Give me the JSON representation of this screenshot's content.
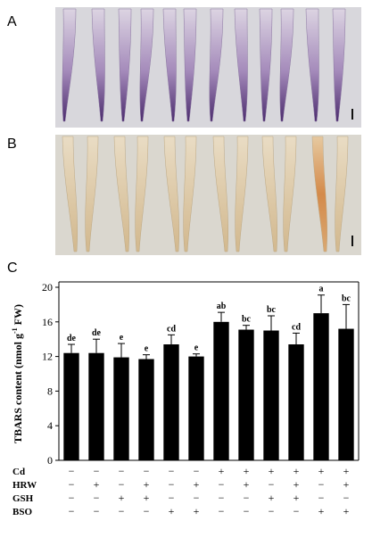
{
  "panels": {
    "a_label": "A",
    "b_label": "B",
    "c_label": "C"
  },
  "colors": {
    "photo_a_bg": "#d7d6db",
    "root_a": "#d9d0df",
    "root_a_tip": "#5b3a7a",
    "photo_b_bg": "#d9d6cf",
    "root_b": "#e4d5b9",
    "bar": "#000000"
  },
  "chart_data": {
    "type": "bar",
    "ylabel": "TBARS content (nmol g⁻¹ FW)",
    "ylabel_parts": [
      "TBARS content (nmol g",
      "-1",
      " FW)"
    ],
    "ylim": [
      0,
      20
    ],
    "yticks": [
      0,
      4,
      8,
      12,
      16,
      20
    ],
    "values": [
      12.4,
      12.4,
      11.9,
      11.7,
      13.4,
      12.0,
      16.0,
      15.1,
      15.0,
      13.4,
      17.0,
      15.2
    ],
    "errors": [
      1.0,
      1.6,
      1.6,
      0.5,
      1.1,
      0.3,
      1.1,
      0.5,
      1.7,
      1.3,
      2.1,
      2.8
    ],
    "letters": [
      "de",
      "de",
      "e",
      "e",
      "cd",
      "e",
      "ab",
      "bc",
      "bc",
      "cd",
      "a",
      "bc"
    ],
    "treatments": [
      {
        "name": "Cd",
        "signs": [
          "−",
          "−",
          "−",
          "−",
          "−",
          "−",
          "+",
          "+",
          "+",
          "+",
          "+",
          "+"
        ]
      },
      {
        "name": "HRW",
        "signs": [
          "−",
          "+",
          "−",
          "+",
          "−",
          "+",
          "−",
          "+",
          "−",
          "+",
          "−",
          "+"
        ]
      },
      {
        "name": "GSH",
        "signs": [
          "−",
          "−",
          "+",
          "+",
          "−",
          "−",
          "−",
          "−",
          "+",
          "+",
          "−",
          "−"
        ]
      },
      {
        "name": "BSO",
        "signs": [
          "−",
          "−",
          "−",
          "−",
          "+",
          "+",
          "−",
          "−",
          "−",
          "−",
          "+",
          "+"
        ]
      }
    ]
  }
}
